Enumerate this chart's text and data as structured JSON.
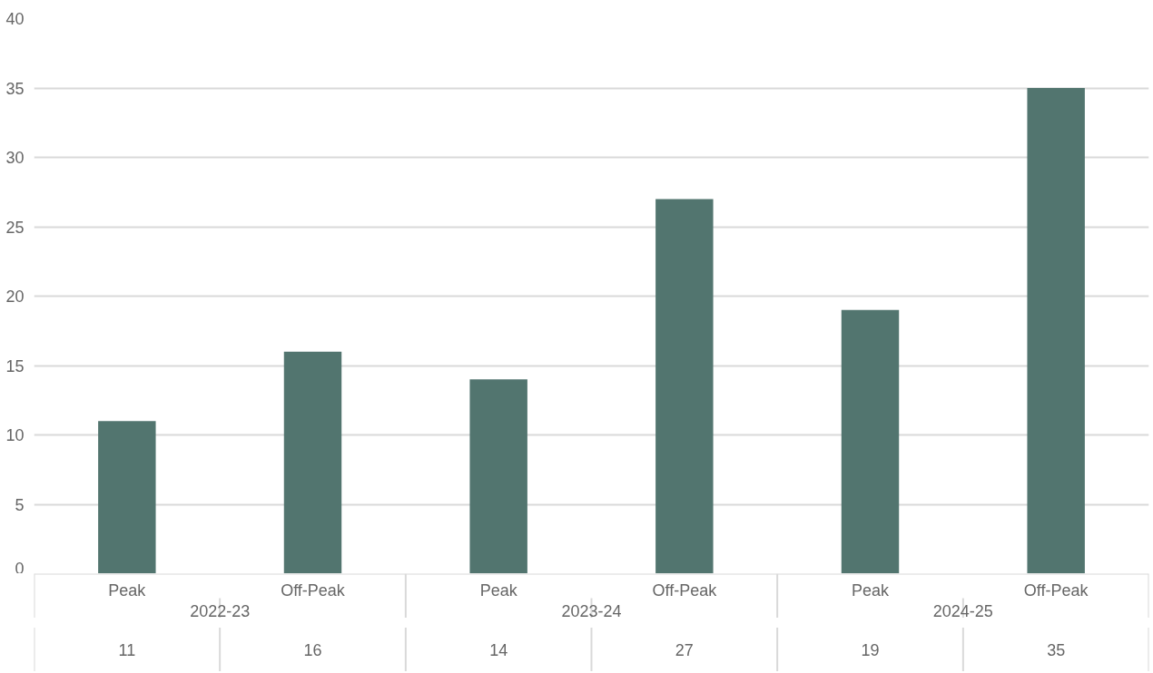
{
  "chart_data": {
    "type": "bar",
    "categories": [
      "Peak",
      "Off-Peak",
      "Peak",
      "Off-Peak",
      "Peak",
      "Off-Peak"
    ],
    "values": [
      11,
      16,
      14,
      27,
      19,
      35
    ],
    "color": "#52756f",
    "annotations": [
      "2022-23",
      "2023-24",
      "2024-25"
    ],
    "ylim": [
      0,
      40
    ],
    "yticks": [
      0,
      5,
      10,
      15,
      20,
      25,
      30,
      35,
      40
    ],
    "grid": "y",
    "data_labels": true
  }
}
